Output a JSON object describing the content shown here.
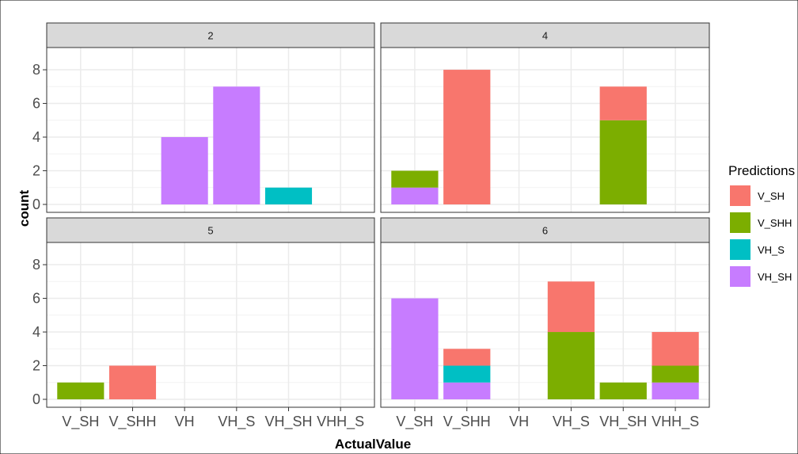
{
  "chart_data": {
    "type": "bar",
    "stacked": true,
    "facet_by": "facet",
    "facets": [
      "2",
      "4",
      "5",
      "6"
    ],
    "categories": [
      "V_SH",
      "V_SHH",
      "VH",
      "VH_S",
      "VH_SH",
      "VHH_S"
    ],
    "series": [
      {
        "name": "V_SH",
        "color": "#F8766D",
        "values": {
          "2": [
            0,
            0,
            0,
            0,
            0,
            0
          ],
          "4": [
            0,
            8,
            0,
            0,
            2,
            0
          ],
          "5": [
            0,
            2,
            0,
            0,
            0,
            0
          ],
          "6": [
            0,
            1,
            0,
            3,
            0,
            2
          ]
        }
      },
      {
        "name": "V_SHH",
        "color": "#7CAE00",
        "values": {
          "2": [
            0,
            0,
            0,
            0,
            0,
            0
          ],
          "4": [
            1,
            0,
            0,
            0,
            5,
            0
          ],
          "5": [
            1,
            0,
            0,
            0,
            0,
            0
          ],
          "6": [
            0,
            0,
            0,
            4,
            1,
            1
          ]
        }
      },
      {
        "name": "VH_S",
        "color": "#00BFC4",
        "values": {
          "2": [
            0,
            0,
            0,
            0,
            1,
            0
          ],
          "4": [
            0,
            0,
            0,
            0,
            0,
            0
          ],
          "5": [
            0,
            0,
            0,
            0,
            0,
            0
          ],
          "6": [
            0,
            1,
            0,
            0,
            0,
            0
          ]
        }
      },
      {
        "name": "VH_SH",
        "color": "#C77CFF",
        "values": {
          "2": [
            0,
            0,
            4,
            7,
            0,
            0
          ],
          "4": [
            1,
            0,
            0,
            0,
            0,
            0
          ],
          "5": [
            0,
            0,
            0,
            0,
            0,
            0
          ],
          "6": [
            6,
            1,
            0,
            0,
            0,
            1
          ]
        }
      }
    ],
    "xlabel": "ActualValue",
    "ylabel": "count",
    "ylim": [
      0,
      8
    ],
    "yticks": [
      0,
      2,
      4,
      6,
      8
    ],
    "grid": true,
    "legend": {
      "title": "Predictions",
      "position": "right"
    }
  }
}
